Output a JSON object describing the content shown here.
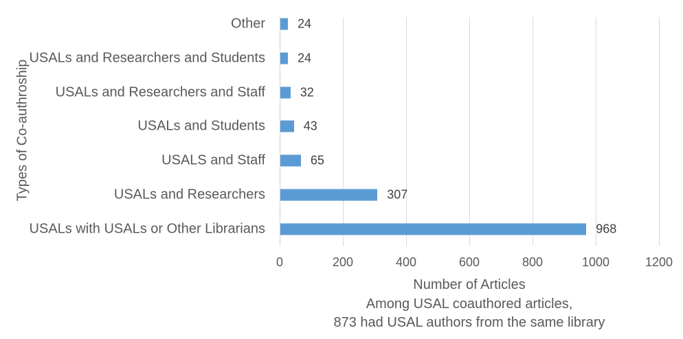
{
  "chart_data": {
    "type": "bar",
    "orientation": "horizontal",
    "title": "",
    "xlabel": "Number of Articles",
    "xlabel_note_lines": [
      "Among USAL coauthored articles,",
      "873 had USAL authors from the same library"
    ],
    "ylabel": "Types of Co-authroship",
    "categories": [
      "Other",
      "USALs and Researchers and Students",
      "USALs and Researchers and Staff",
      "USALs and Students",
      "USALS and Staff",
      "USALs and Researchers",
      "USALs with USALs or Other Librarians"
    ],
    "values": [
      24,
      24,
      32,
      43,
      65,
      307,
      968
    ],
    "xlim": [
      0,
      1200
    ],
    "xticks": [
      "0",
      "200",
      "400",
      "600",
      "800",
      "1000",
      "1200"
    ],
    "grid": "vertical",
    "data_labels": true,
    "legend": "none",
    "bar_color": "#5b9bd5"
  }
}
